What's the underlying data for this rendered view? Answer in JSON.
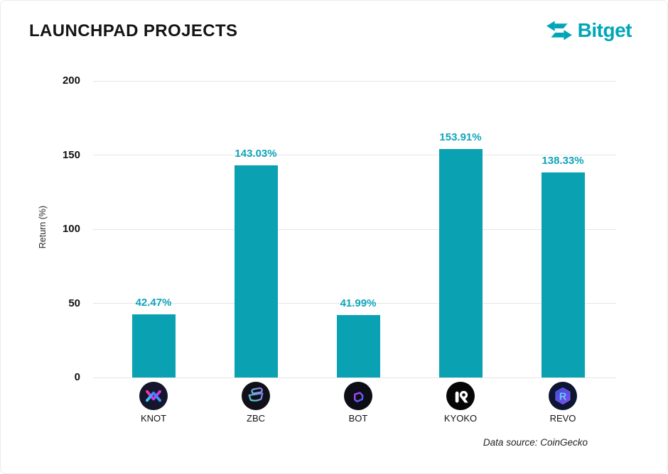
{
  "header": {
    "title": "LAUNCHPAD PROJECTS",
    "brand_name": "Bitget"
  },
  "axis": {
    "y_title": "Return (%)"
  },
  "footer": {
    "source_note": "Data source: CoinGecko"
  },
  "chart_data": {
    "type": "bar",
    "title": "LAUNCHPAD PROJECTS",
    "categories": [
      "KNOT",
      "ZBC",
      "BOT",
      "KYOKO",
      "REVO"
    ],
    "values": [
      42.47,
      143.03,
      41.99,
      153.91,
      138.33
    ],
    "value_labels": [
      "42.47%",
      "143.03%",
      "41.99%",
      "153.91%",
      "138.33%"
    ],
    "token_icons": [
      "knot-token-icon",
      "zbc-token-icon",
      "bot-token-icon",
      "kyoko-token-icon",
      "revo-token-icon"
    ],
    "xlabel": "",
    "ylabel": "Return (%)",
    "ylim": [
      0,
      200
    ],
    "yticks": [
      0,
      50,
      100,
      150,
      200
    ],
    "grid": true,
    "legend": false,
    "bar_color": "#0AA1B2",
    "value_label_color": "#0FA4BC",
    "source": "Data source: CoinGecko"
  },
  "colors": {
    "accent": "#00A6B8",
    "bar": "#0AA1B2",
    "gridline": "#E6E6E6",
    "title_text": "#141414"
  }
}
